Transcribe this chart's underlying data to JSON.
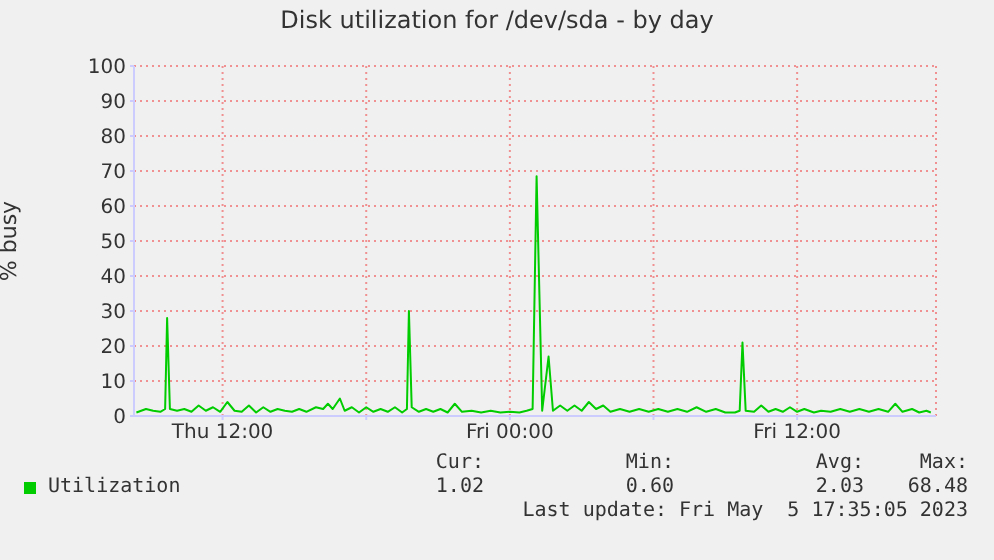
{
  "chart_data": {
    "type": "line",
    "title": "Disk utilization for /dev/sda - by day",
    "ylabel": "% busy",
    "xlim": [
      "2023-05-04T08:18",
      "2023-05-05T17:48"
    ],
    "xticks": [
      {
        "value": "2023-05-04T12:00",
        "label": "Thu 12:00"
      },
      {
        "value": "2023-05-04T18:00",
        "label": null
      },
      {
        "value": "2023-05-05T00:00",
        "label": "Fri 00:00"
      },
      {
        "value": "2023-05-05T06:00",
        "label": null
      },
      {
        "value": "2023-05-05T12:00",
        "label": "Fri 12:00"
      }
    ],
    "ylim": [
      0,
      100
    ],
    "yticks": [
      0,
      10,
      20,
      30,
      40,
      50,
      60,
      70,
      80,
      90,
      100
    ],
    "grid": true,
    "legend": "bottom left",
    "marker": "none",
    "line_style": "solid",
    "annotations": [
      "Cur:",
      "Min:",
      "Avg:",
      "Max:",
      "1.02",
      "0.60",
      "2.03",
      "68.48",
      "Last update: Fri May  5 17:35:05 2023"
    ],
    "series": [
      {
        "name": "Utilization",
        "color": "#00cc00",
        "x": [
          "2023-05-04T08:24",
          "2023-05-04T08:48",
          "2023-05-04T09:06",
          "2023-05-04T09:24",
          "2023-05-04T09:36",
          "2023-05-04T09:41",
          "2023-05-04T09:48",
          "2023-05-04T10:06",
          "2023-05-04T10:24",
          "2023-05-04T10:42",
          "2023-05-04T11:00",
          "2023-05-04T11:18",
          "2023-05-04T11:36",
          "2023-05-04T11:54",
          "2023-05-04T12:12",
          "2023-05-04T12:30",
          "2023-05-04T12:48",
          "2023-05-04T13:06",
          "2023-05-04T13:24",
          "2023-05-04T13:42",
          "2023-05-04T14:00",
          "2023-05-04T14:18",
          "2023-05-04T14:36",
          "2023-05-04T14:54",
          "2023-05-04T15:12",
          "2023-05-04T15:30",
          "2023-05-04T15:54",
          "2023-05-04T16:12",
          "2023-05-04T16:24",
          "2023-05-04T16:36",
          "2023-05-04T16:54",
          "2023-05-04T17:06",
          "2023-05-04T17:24",
          "2023-05-04T17:42",
          "2023-05-04T18:00",
          "2023-05-04T18:18",
          "2023-05-04T18:36",
          "2023-05-04T18:54",
          "2023-05-04T19:12",
          "2023-05-04T19:30",
          "2023-05-04T19:42",
          "2023-05-04T19:47",
          "2023-05-04T19:54",
          "2023-05-04T20:12",
          "2023-05-04T20:30",
          "2023-05-04T20:48",
          "2023-05-04T21:06",
          "2023-05-04T21:24",
          "2023-05-04T21:42",
          "2023-05-04T22:00",
          "2023-05-04T22:24",
          "2023-05-04T22:48",
          "2023-05-04T23:12",
          "2023-05-04T23:36",
          "2023-05-05T00:00",
          "2023-05-05T00:24",
          "2023-05-05T00:42",
          "2023-05-05T00:57",
          "2023-05-05T01:07",
          "2023-05-05T01:21",
          "2023-05-05T01:37",
          "2023-05-05T01:48",
          "2023-05-05T02:06",
          "2023-05-05T02:24",
          "2023-05-05T02:42",
          "2023-05-05T03:00",
          "2023-05-05T03:18",
          "2023-05-05T03:36",
          "2023-05-05T03:54",
          "2023-05-05T04:12",
          "2023-05-05T04:36",
          "2023-05-05T05:00",
          "2023-05-05T05:24",
          "2023-05-05T05:48",
          "2023-05-05T06:12",
          "2023-05-05T06:36",
          "2023-05-05T07:00",
          "2023-05-05T07:24",
          "2023-05-05T07:48",
          "2023-05-05T08:12",
          "2023-05-05T08:36",
          "2023-05-05T09:00",
          "2023-05-05T09:24",
          "2023-05-05T09:36",
          "2023-05-05T09:43",
          "2023-05-05T09:51",
          "2023-05-05T10:12",
          "2023-05-05T10:30",
          "2023-05-05T10:48",
          "2023-05-05T11:06",
          "2023-05-05T11:24",
          "2023-05-05T11:42",
          "2023-05-05T12:00",
          "2023-05-05T12:18",
          "2023-05-05T12:42",
          "2023-05-05T13:00",
          "2023-05-05T13:24",
          "2023-05-05T13:48",
          "2023-05-05T14:12",
          "2023-05-05T14:36",
          "2023-05-05T15:00",
          "2023-05-05T15:24",
          "2023-05-05T15:48",
          "2023-05-05T16:06",
          "2023-05-05T16:24",
          "2023-05-05T16:48",
          "2023-05-05T17:06",
          "2023-05-05T17:24",
          "2023-05-05T17:35"
        ],
        "values": [
          1,
          2,
          1.5,
          1.2,
          2,
          28,
          2,
          1.5,
          2,
          1.2,
          3,
          1.5,
          2.5,
          1.2,
          4,
          1.5,
          1.2,
          3,
          1,
          2.5,
          1.2,
          2,
          1.5,
          1.2,
          2,
          1.2,
          2.5,
          2,
          3.5,
          2,
          5,
          1.5,
          2.5,
          1,
          2.5,
          1.2,
          2,
          1.2,
          2.5,
          1,
          2,
          30,
          2.5,
          1.2,
          2,
          1.2,
          2,
          1,
          3.5,
          1.2,
          1.5,
          1,
          1.5,
          1,
          1.2,
          1,
          1.5,
          2,
          68.5,
          1.5,
          17,
          1.5,
          3,
          1.5,
          3,
          1.5,
          4,
          2,
          3,
          1.2,
          2,
          1.2,
          2,
          1.2,
          2,
          1.2,
          2,
          1.2,
          2.5,
          1.2,
          2,
          1,
          1,
          1.5,
          21,
          1.5,
          1.2,
          3,
          1.2,
          2,
          1.2,
          2.5,
          1.2,
          2,
          1,
          1.5,
          1.2,
          2,
          1.2,
          2,
          1.2,
          2,
          1.2,
          3.5,
          1.2,
          2,
          1,
          1.5,
          1
        ]
      }
    ]
  }
}
